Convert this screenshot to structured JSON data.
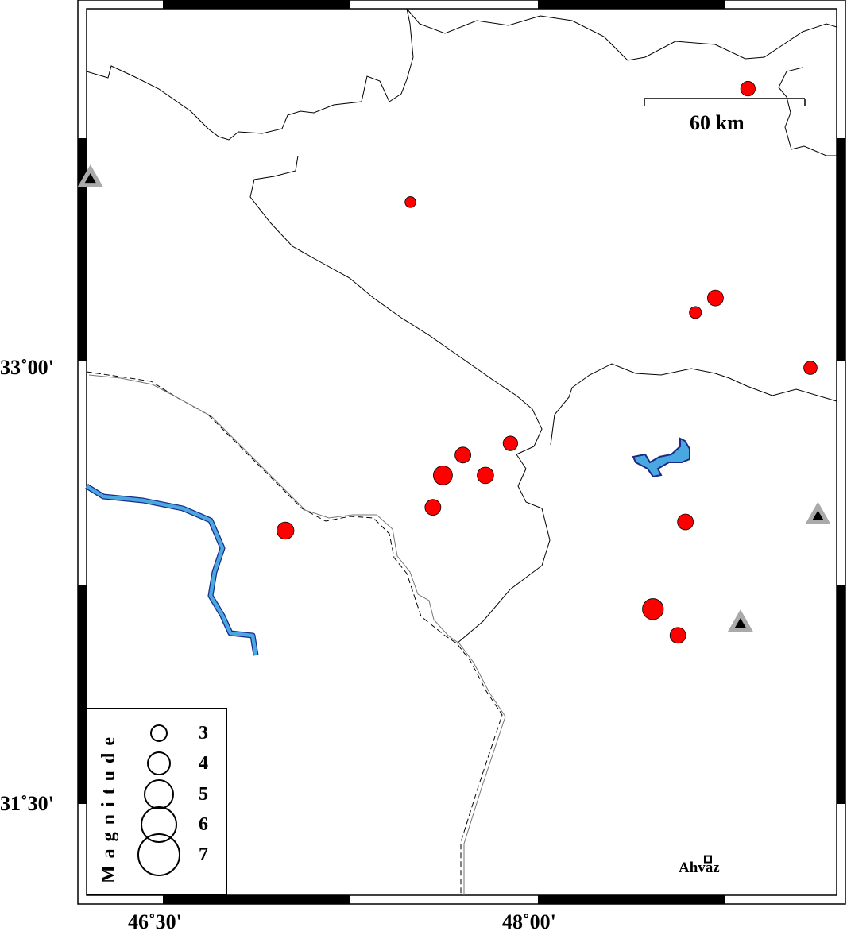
{
  "map": {
    "extent": {
      "lon": [
        46.195,
        49.195
      ],
      "lat": [
        31.186,
        34.235
      ]
    },
    "x_ticks": [
      {
        "lon": 46.5,
        "label": "46˚30'"
      },
      {
        "lon": 48.0,
        "label": "48˚00'"
      }
    ],
    "y_ticks": [
      {
        "lat": 33.0,
        "label": "33˚00'"
      },
      {
        "lat": 31.5,
        "label": "31˚30'"
      }
    ],
    "colors": {
      "event": "#ff0000",
      "water": "#4aa8e0",
      "water_outline": "#1a2a8a",
      "station_outer": "#aaaaaa",
      "station_inner": "#000000"
    },
    "scale_bar": {
      "label": "60 km"
    },
    "cities": [
      {
        "name": "Ahvaz",
        "lon": 48.68,
        "lat": 31.31
      }
    ],
    "stations": [
      {
        "lon": 46.21,
        "lat": 33.65
      },
      {
        "lon": 49.12,
        "lat": 32.49
      },
      {
        "lon": 48.81,
        "lat": 32.12
      }
    ],
    "events": [
      {
        "lon": 48.84,
        "lat": 33.96,
        "mag": 2.8
      },
      {
        "lon": 47.49,
        "lat": 33.57,
        "mag": 2.2
      },
      {
        "lon": 48.71,
        "lat": 33.24,
        "mag": 3.0
      },
      {
        "lon": 48.63,
        "lat": 33.19,
        "mag": 2.4
      },
      {
        "lon": 49.09,
        "lat": 33.0,
        "mag": 2.6
      },
      {
        "lon": 47.89,
        "lat": 32.74,
        "mag": 2.8
      },
      {
        "lon": 47.7,
        "lat": 32.7,
        "mag": 3.0
      },
      {
        "lon": 47.62,
        "lat": 32.63,
        "mag": 3.5
      },
      {
        "lon": 47.79,
        "lat": 32.63,
        "mag": 3.1
      },
      {
        "lon": 47.58,
        "lat": 32.52,
        "mag": 3.0
      },
      {
        "lon": 46.99,
        "lat": 32.44,
        "mag": 3.2
      },
      {
        "lon": 48.59,
        "lat": 32.47,
        "mag": 3.0
      },
      {
        "lon": 48.46,
        "lat": 32.17,
        "mag": 3.8
      },
      {
        "lon": 48.56,
        "lat": 32.08,
        "mag": 3.0
      }
    ],
    "legend": {
      "title": "Magnitude",
      "magnitudes": [
        "3",
        "4",
        "5",
        "6",
        "7"
      ]
    }
  }
}
